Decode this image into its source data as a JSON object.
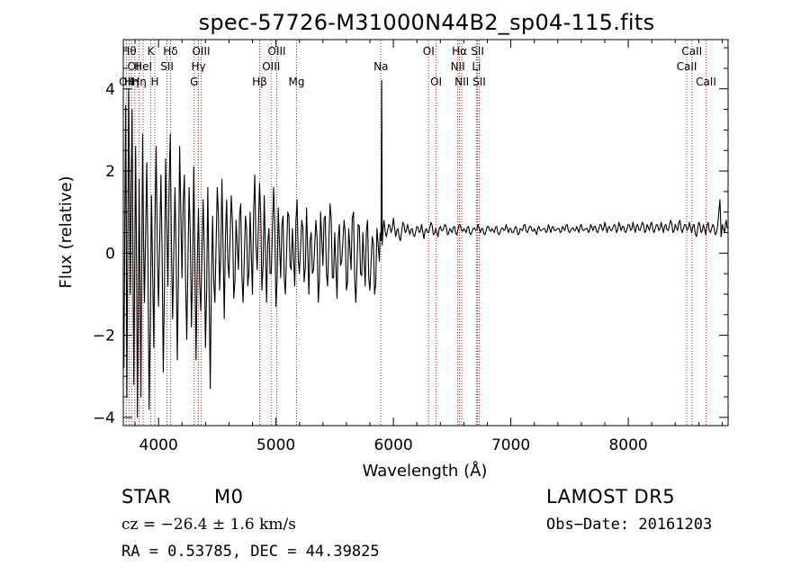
{
  "chart_data": {
    "type": "line",
    "title": "spec-57726-M31000N44B2_sp04-115.fits",
    "xlabel": "Wavelength (Å)",
    "ylabel": "Flux (relative)",
    "xlim": [
      3700,
      8850
    ],
    "ylim": [
      -4.2,
      5.2
    ],
    "xticks": [
      4000,
      5000,
      6000,
      7000,
      8000
    ],
    "yticks": [
      -4,
      -2,
      0,
      2,
      4
    ],
    "grid": false,
    "line_color": "#000000",
    "marker_color": "#b22222",
    "anchors": [
      [
        3705,
        -2.8
      ],
      [
        3720,
        3.6
      ],
      [
        3730,
        -3.5
      ],
      [
        3745,
        4.0
      ],
      [
        3760,
        -1.0
      ],
      [
        3775,
        3.5
      ],
      [
        3790,
        -3.2
      ],
      [
        3805,
        2.6
      ],
      [
        3820,
        -4.0
      ],
      [
        3835,
        1.8
      ],
      [
        3850,
        -3.5
      ],
      [
        3865,
        2.9
      ],
      [
        3880,
        -1.2
      ],
      [
        3900,
        2.2
      ],
      [
        3920,
        -3.8
      ],
      [
        3940,
        1.4
      ],
      [
        3960,
        -2.3
      ],
      [
        3980,
        2.6
      ],
      [
        4000,
        -1.3
      ],
      [
        4020,
        1.9
      ],
      [
        4040,
        -2.9
      ],
      [
        4060,
        2.3
      ],
      [
        4080,
        -0.8
      ],
      [
        4100,
        2.9
      ],
      [
        4120,
        -1.6
      ],
      [
        4140,
        1.6
      ],
      [
        4160,
        -2.6
      ],
      [
        4180,
        2.6
      ],
      [
        4200,
        -0.6
      ],
      [
        4220,
        1.9
      ],
      [
        4240,
        -2.1
      ],
      [
        4260,
        1.6
      ],
      [
        4280,
        -1.8
      ],
      [
        4300,
        2.1
      ],
      [
        4320,
        -2.6
      ],
      [
        4340,
        1.1
      ],
      [
        4360,
        -1.4
      ],
      [
        4380,
        1.3
      ],
      [
        4400,
        -2.3
      ],
      [
        4420,
        1.6
      ],
      [
        4440,
        -3.3
      ],
      [
        4460,
        0.9
      ],
      [
        4480,
        -1.2
      ],
      [
        4500,
        1.6
      ],
      [
        4520,
        -0.9
      ],
      [
        4540,
        1.8
      ],
      [
        4560,
        -1.6
      ],
      [
        4580,
        1.3
      ],
      [
        4600,
        -0.6
      ],
      [
        4620,
        1.4
      ],
      [
        4640,
        -1.1
      ],
      [
        4660,
        0.8
      ],
      [
        4680,
        -0.4
      ],
      [
        4700,
        1.2
      ],
      [
        4720,
        -1.2
      ],
      [
        4740,
        0.9
      ],
      [
        4760,
        -0.8
      ],
      [
        4780,
        1.0
      ],
      [
        4800,
        -1.0
      ],
      [
        4820,
        1.9
      ],
      [
        4840,
        -0.4
      ],
      [
        4860,
        1.7
      ],
      [
        4880,
        -0.9
      ],
      [
        4900,
        1.4
      ],
      [
        4920,
        -1.2
      ],
      [
        4940,
        0.6
      ],
      [
        4960,
        -0.5
      ],
      [
        4980,
        1.6
      ],
      [
        5000,
        -1.3
      ],
      [
        5020,
        1.1
      ],
      [
        5040,
        -0.6
      ],
      [
        5060,
        0.9
      ],
      [
        5080,
        -1.0
      ],
      [
        5100,
        1.0
      ],
      [
        5120,
        -0.3
      ],
      [
        5140,
        0.6
      ],
      [
        5160,
        -0.8
      ],
      [
        5180,
        1.3
      ],
      [
        5200,
        -0.5
      ],
      [
        5220,
        0.8
      ],
      [
        5240,
        -0.7
      ],
      [
        5260,
        1.1
      ],
      [
        5280,
        -1.0
      ],
      [
        5300,
        0.5
      ],
      [
        5320,
        -0.4
      ],
      [
        5340,
        0.8
      ],
      [
        5360,
        -1.2
      ],
      [
        5380,
        1.0
      ],
      [
        5400,
        -0.3
      ],
      [
        5420,
        0.9
      ],
      [
        5440,
        -0.8
      ],
      [
        5460,
        1.2
      ],
      [
        5480,
        -0.6
      ],
      [
        5500,
        0.5
      ],
      [
        5520,
        -1.1
      ],
      [
        5540,
        0.7
      ],
      [
        5560,
        -0.2
      ],
      [
        5580,
        0.8
      ],
      [
        5600,
        -0.9
      ],
      [
        5620,
        0.6
      ],
      [
        5640,
        -0.4
      ],
      [
        5660,
        1.0
      ],
      [
        5680,
        -1.2
      ],
      [
        5700,
        0.7
      ],
      [
        5720,
        -0.5
      ],
      [
        5740,
        0.5
      ],
      [
        5760,
        -0.8
      ],
      [
        5780,
        0.8
      ],
      [
        5800,
        -0.9
      ],
      [
        5820,
        0.4
      ],
      [
        5840,
        -1.0
      ],
      [
        5860,
        0.6
      ],
      [
        5880,
        -0.2
      ],
      [
        5895,
        0.3
      ],
      [
        5900,
        4.2
      ],
      [
        5905,
        0.2
      ],
      [
        5920,
        0.8
      ],
      [
        5940,
        0.4
      ],
      [
        5960,
        0.7
      ],
      [
        5980,
        0.5
      ],
      [
        6000,
        0.85
      ],
      [
        6020,
        0.4
      ],
      [
        6040,
        0.6
      ],
      [
        6060,
        0.3
      ],
      [
        6080,
        0.75
      ],
      [
        6100,
        0.5
      ],
      [
        6120,
        0.7
      ],
      [
        6140,
        0.45
      ],
      [
        6160,
        0.6
      ],
      [
        6180,
        0.4
      ],
      [
        6200,
        0.65
      ],
      [
        6220,
        0.5
      ],
      [
        6240,
        0.7
      ],
      [
        6260,
        0.35
      ],
      [
        6280,
        0.6
      ],
      [
        6300,
        0.5
      ],
      [
        6320,
        0.75
      ],
      [
        6340,
        0.45
      ],
      [
        6360,
        0.6
      ],
      [
        6380,
        0.4
      ],
      [
        6400,
        0.65
      ],
      [
        6420,
        0.55
      ],
      [
        6440,
        0.7
      ],
      [
        6460,
        0.45
      ],
      [
        6480,
        0.6
      ],
      [
        6500,
        0.5
      ],
      [
        6520,
        0.65
      ],
      [
        6540,
        0.45
      ],
      [
        6560,
        0.7
      ],
      [
        6580,
        0.55
      ],
      [
        6600,
        0.6
      ],
      [
        6620,
        0.5
      ],
      [
        6640,
        0.65
      ],
      [
        6660,
        0.45
      ],
      [
        6680,
        0.6
      ],
      [
        6700,
        0.55
      ],
      [
        6720,
        0.7
      ],
      [
        6740,
        0.5
      ],
      [
        6760,
        0.6
      ],
      [
        6780,
        0.45
      ],
      [
        6800,
        0.65
      ],
      [
        6820,
        0.55
      ],
      [
        6840,
        0.6
      ],
      [
        6860,
        0.5
      ],
      [
        6880,
        0.65
      ],
      [
        6900,
        0.45
      ],
      [
        6920,
        0.6
      ],
      [
        6940,
        0.55
      ],
      [
        6960,
        0.7
      ],
      [
        6980,
        0.5
      ],
      [
        7000,
        0.6
      ],
      [
        7020,
        0.5
      ],
      [
        7040,
        0.65
      ],
      [
        7060,
        0.45
      ],
      [
        7080,
        0.6
      ],
      [
        7100,
        0.55
      ],
      [
        7120,
        0.7
      ],
      [
        7140,
        0.5
      ],
      [
        7160,
        0.65
      ],
      [
        7180,
        0.55
      ],
      [
        7200,
        0.6
      ],
      [
        7220,
        0.45
      ],
      [
        7240,
        0.65
      ],
      [
        7260,
        0.55
      ],
      [
        7280,
        0.6
      ],
      [
        7300,
        0.5
      ],
      [
        7320,
        0.7
      ],
      [
        7340,
        0.5
      ],
      [
        7360,
        0.65
      ],
      [
        7380,
        0.55
      ],
      [
        7400,
        0.6
      ],
      [
        7420,
        0.5
      ],
      [
        7440,
        0.65
      ],
      [
        7460,
        0.55
      ],
      [
        7480,
        0.7
      ],
      [
        7500,
        0.5
      ],
      [
        7520,
        0.6
      ],
      [
        7540,
        0.55
      ],
      [
        7560,
        0.65
      ],
      [
        7580,
        0.5
      ],
      [
        7600,
        0.7
      ],
      [
        7620,
        0.55
      ],
      [
        7640,
        0.6
      ],
      [
        7660,
        0.5
      ],
      [
        7680,
        0.7
      ],
      [
        7700,
        0.55
      ],
      [
        7720,
        0.65
      ],
      [
        7740,
        0.5
      ],
      [
        7760,
        0.7
      ],
      [
        7780,
        0.55
      ],
      [
        7800,
        0.75
      ],
      [
        7820,
        0.5
      ],
      [
        7840,
        0.65
      ],
      [
        7860,
        0.55
      ],
      [
        7880,
        0.7
      ],
      [
        7900,
        0.5
      ],
      [
        7920,
        0.75
      ],
      [
        7940,
        0.55
      ],
      [
        7960,
        0.65
      ],
      [
        7980,
        0.5
      ],
      [
        8000,
        0.7
      ],
      [
        8020,
        0.55
      ],
      [
        8040,
        0.75
      ],
      [
        8060,
        0.5
      ],
      [
        8080,
        0.7
      ],
      [
        8100,
        0.55
      ],
      [
        8120,
        0.75
      ],
      [
        8140,
        0.5
      ],
      [
        8160,
        0.7
      ],
      [
        8180,
        0.55
      ],
      [
        8200,
        0.75
      ],
      [
        8220,
        0.5
      ],
      [
        8240,
        0.7
      ],
      [
        8260,
        0.55
      ],
      [
        8280,
        0.75
      ],
      [
        8300,
        0.5
      ],
      [
        8320,
        0.7
      ],
      [
        8340,
        0.55
      ],
      [
        8360,
        0.8
      ],
      [
        8380,
        0.5
      ],
      [
        8400,
        0.7
      ],
      [
        8420,
        0.55
      ],
      [
        8440,
        0.8
      ],
      [
        8460,
        0.5
      ],
      [
        8480,
        0.7
      ],
      [
        8500,
        0.55
      ],
      [
        8520,
        0.75
      ],
      [
        8540,
        0.5
      ],
      [
        8560,
        0.7
      ],
      [
        8580,
        0.4
      ],
      [
        8600,
        0.75
      ],
      [
        8620,
        0.5
      ],
      [
        8640,
        0.7
      ],
      [
        8660,
        0.45
      ],
      [
        8680,
        0.75
      ],
      [
        8700,
        0.5
      ],
      [
        8720,
        0.7
      ],
      [
        8740,
        0.45
      ],
      [
        8760,
        0.65
      ],
      [
        8780,
        1.3
      ],
      [
        8790,
        0.4
      ],
      [
        8800,
        0.7
      ],
      [
        8820,
        0.5
      ],
      [
        8835,
        0.8
      ],
      [
        8845,
        0.6
      ]
    ],
    "lines": [
      {
        "x": 3726,
        "label": "OII",
        "row": 2
      },
      {
        "x": 3750,
        "label": "Hθ",
        "row": 0
      },
      {
        "x": 3770,
        "label": "Hη",
        "row": 2
      },
      {
        "x": 3798,
        "label": "OII",
        "row": 1
      },
      {
        "x": 3835,
        "label": "Hη",
        "row": 2
      },
      {
        "x": 3869,
        "label": "HeI",
        "row": 1
      },
      {
        "x": 3934,
        "label": "K",
        "row": 0
      },
      {
        "x": 3968,
        "label": "H",
        "row": 2
      },
      {
        "x": 4072,
        "label": "SII",
        "row": 1
      },
      {
        "x": 4102,
        "label": "Hδ",
        "row": 0
      },
      {
        "x": 4304,
        "label": "G",
        "row": 2
      },
      {
        "x": 4340,
        "label": "Hγ",
        "row": 1
      },
      {
        "x": 4363,
        "label": "OIII",
        "row": 0
      },
      {
        "x": 4861,
        "label": "Hβ",
        "row": 2
      },
      {
        "x": 4959,
        "label": "OIII",
        "row": 1
      },
      {
        "x": 5007,
        "label": "OIII",
        "row": 0
      },
      {
        "x": 5175,
        "label": "Mg",
        "row": 2
      },
      {
        "x": 5894,
        "label": "Na",
        "row": 1
      },
      {
        "x": 6300,
        "label": "OI",
        "row": 0
      },
      {
        "x": 6364,
        "label": "OI",
        "row": 2
      },
      {
        "x": 6548,
        "label": "NII",
        "row": 1
      },
      {
        "x": 6563,
        "label": "Hα",
        "row": 0
      },
      {
        "x": 6583,
        "label": "NII",
        "row": 2
      },
      {
        "x": 6707,
        "label": "Li",
        "row": 1
      },
      {
        "x": 6716,
        "label": "SII",
        "row": 0
      },
      {
        "x": 6731,
        "label": "SII",
        "row": 2
      },
      {
        "x": 8498,
        "label": "CaII",
        "row": 1
      },
      {
        "x": 8542,
        "label": "CaII",
        "row": 0
      },
      {
        "x": 8662,
        "label": "CaII",
        "row": 2
      }
    ]
  },
  "info": {
    "class_label": "STAR",
    "subclass": "M0",
    "survey": "LAMOST DR5",
    "cz": "cz = −26.4 ± 1.6 km/s",
    "obs_date": "Obs−Date: 20161203",
    "radec": "RA =    0.53785, DEC =  44.39825"
  }
}
